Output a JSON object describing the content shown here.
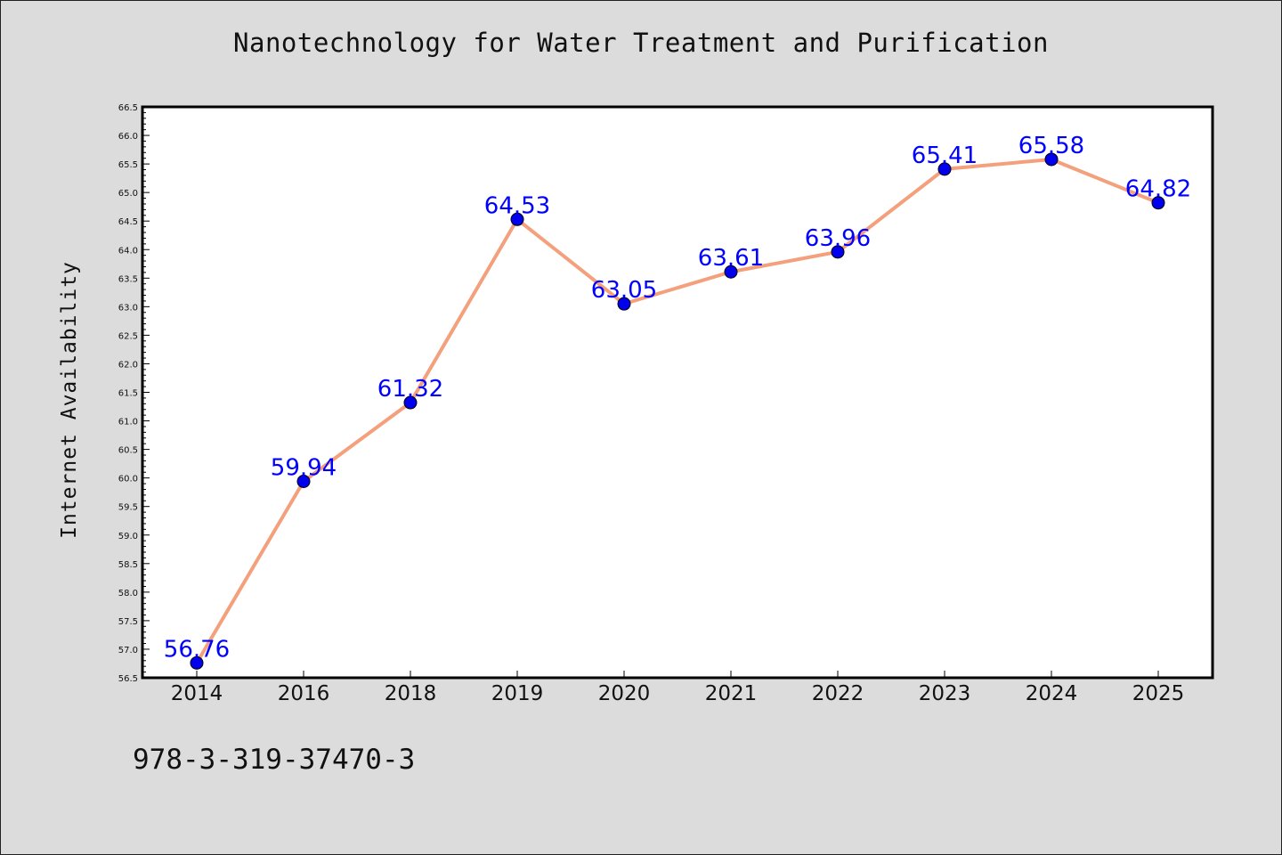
{
  "chart_data": {
    "type": "line",
    "title": "Nanotechnology for Water Treatment and Purification",
    "xlabel": "",
    "ylabel": "Internet Availability",
    "categories": [
      "2014",
      "2016",
      "2018",
      "2019",
      "2020",
      "2021",
      "2022",
      "2023",
      "2024",
      "2025"
    ],
    "series": [
      {
        "values": [
          56.76,
          59.94,
          61.32,
          64.53,
          63.05,
          63.61,
          63.96,
          65.41,
          65.58,
          64.82
        ],
        "data_labels": [
          "56.76",
          "59.94",
          "61.32",
          "64.53",
          "63.05",
          "63.61",
          "63.96",
          "65.41",
          "65.58",
          "64.82"
        ]
      }
    ],
    "ylim": [
      56.5,
      66.5
    ],
    "y_major_step": 0.5,
    "y_tick_labels": [
      "56.5",
      "57.0",
      "57.5",
      "58.0",
      "58.5",
      "59.0",
      "59.5",
      "60.0",
      "60.5",
      "61.0",
      "61.5",
      "62.0",
      "62.5",
      "63.0",
      "63.5",
      "64.0",
      "64.5",
      "65.0",
      "65.5",
      "66.0",
      "66.5"
    ],
    "grid": false,
    "legend": "none",
    "colors": {
      "line": "#f4a07c",
      "marker": "#0000ee",
      "marker_edge": "#000000",
      "data_label": "#0000ff",
      "plot_background": "#ffffff",
      "figure_background": "#dcdcdc"
    }
  },
  "footer": {
    "code": "978-3-319-37470-3"
  }
}
